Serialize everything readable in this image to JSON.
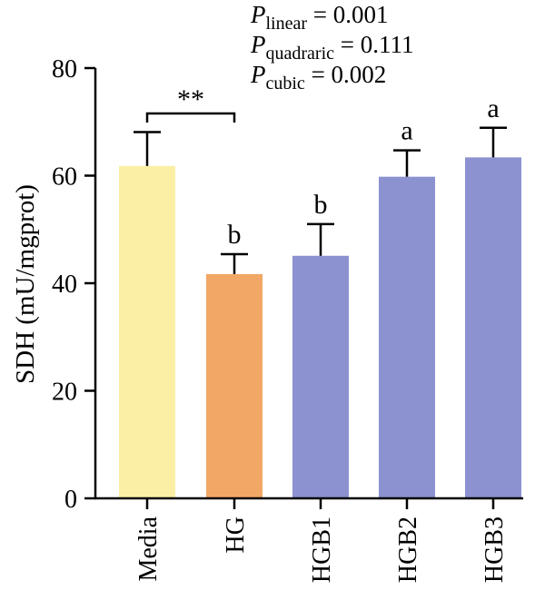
{
  "chart_data": {
    "type": "bar",
    "ylabel": "SDH (mU/mgprot)",
    "xlabel": "",
    "ylim": [
      0,
      80
    ],
    "yticks": [
      0,
      20,
      40,
      60,
      80
    ],
    "categories": [
      "Media",
      "HG",
      "HGB1",
      "HGB2",
      "HGB3"
    ],
    "values": [
      61.8,
      41.7,
      45.1,
      59.8,
      63.4
    ],
    "errors": [
      6.3,
      3.7,
      5.9,
      4.9,
      5.5
    ],
    "letters": [
      "",
      "b",
      "b",
      "a",
      "a"
    ],
    "colors": [
      "#FBEFA6",
      "#F2A766",
      "#8C92D0",
      "#8C92D0",
      "#8C92D0"
    ],
    "significance": {
      "from": "Media",
      "to": "HG",
      "label": "**"
    },
    "stats": [
      {
        "symbol": "P",
        "subscript": "linear",
        "value": "= 0.001"
      },
      {
        "symbol": "P",
        "subscript": "quadraric",
        "value": "= 0.111"
      },
      {
        "symbol": "P",
        "subscript": "cubic",
        "value": "= 0.002"
      }
    ]
  }
}
